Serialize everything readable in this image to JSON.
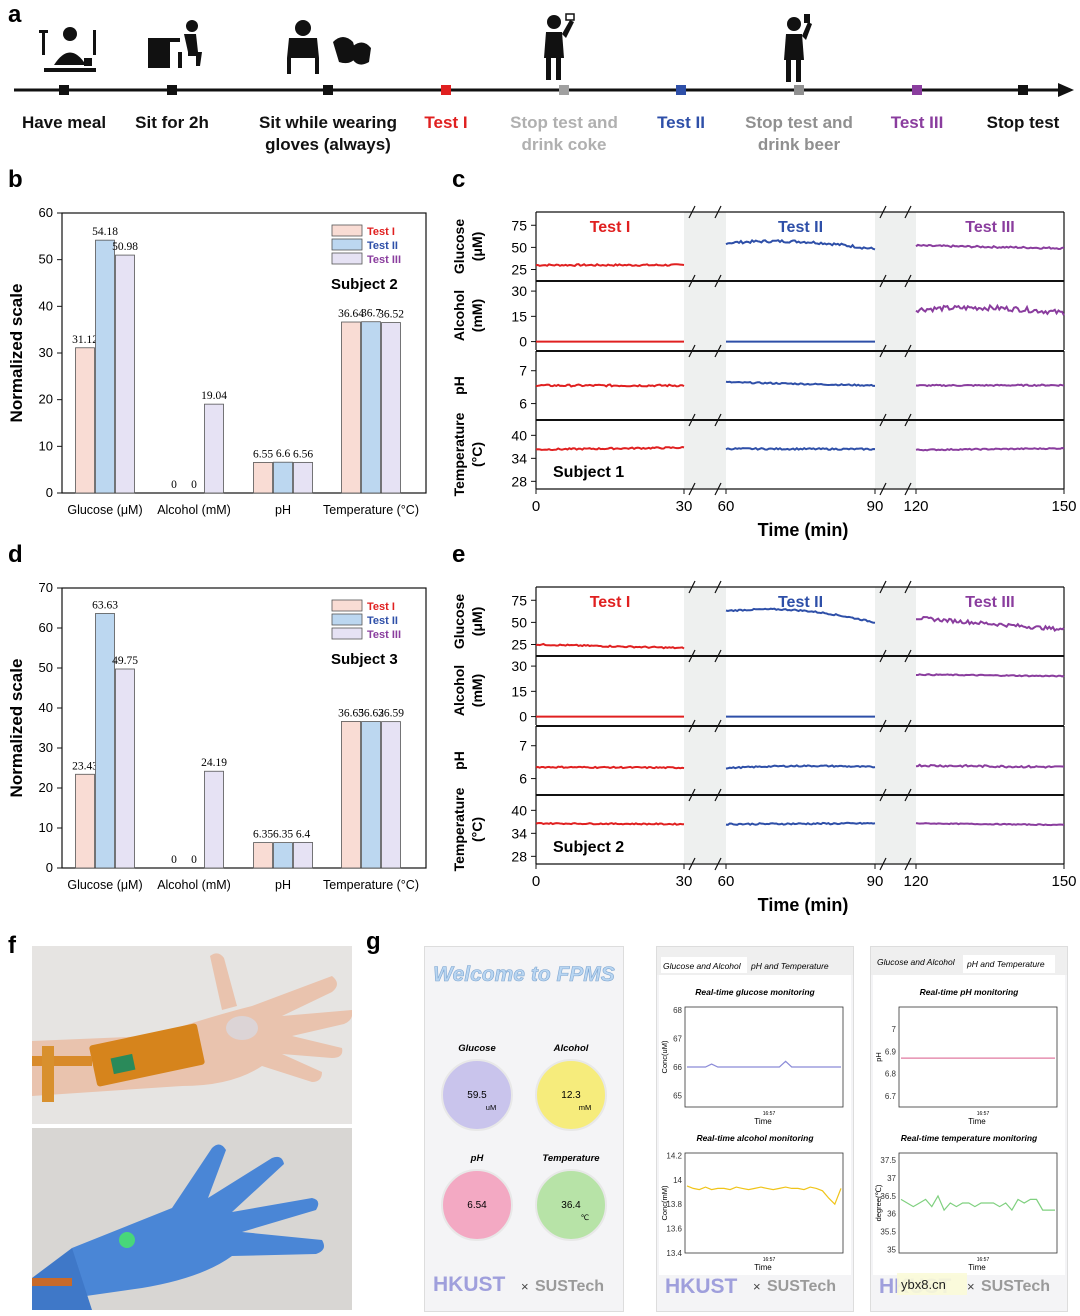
{
  "panels": {
    "a": "a",
    "b": "b",
    "c": "c",
    "d": "d",
    "e": "e",
    "f": "f",
    "g": "g"
  },
  "timeline": {
    "steps": [
      {
        "label": [
          "Have meal"
        ],
        "color": "#111111",
        "marker": "#111111"
      },
      {
        "label": [
          "Sit for 2h"
        ],
        "color": "#111111",
        "marker": "#111111"
      },
      {
        "label": [
          "Sit while wearing",
          "gloves (always)"
        ],
        "color": "#111111",
        "marker": "#111111"
      },
      {
        "label": [
          "Test I"
        ],
        "color": "#e02020",
        "marker": "#e02020"
      },
      {
        "label": [
          "Stop test and",
          "drink coke"
        ],
        "color": "#b0b0b0",
        "marker": "#a0a0a0"
      },
      {
        "label": [
          "Test II"
        ],
        "color": "#2e4fa8",
        "marker": "#2e4fa8"
      },
      {
        "label": [
          "Stop test and",
          "drink beer"
        ],
        "color": "#909090",
        "marker": "#909090"
      },
      {
        "label": [
          "Test III"
        ],
        "color": "#8a3d9e",
        "marker": "#8a3d9e"
      },
      {
        "label": [
          "Stop test"
        ],
        "color": "#111111",
        "marker": "#111111"
      }
    ]
  },
  "chart_data": [
    {
      "id": "b",
      "type": "bar",
      "subtitle": "Subject 2",
      "categories": [
        "Glucose (μM)",
        "Alcohol (mM)",
        "pH",
        "Temperature (°C)"
      ],
      "series": [
        {
          "name": "Test I",
          "values": [
            31.12,
            0,
            6.55,
            36.64
          ],
          "fill": "#f9dcd4",
          "text": "#e02020"
        },
        {
          "name": "Test II",
          "values": [
            54.18,
            0,
            6.6,
            36.7
          ],
          "fill": "#bcd7f0",
          "text": "#2e4fa8"
        },
        {
          "name": "Test III",
          "values": [
            50.98,
            19.04,
            6.56,
            36.52
          ],
          "fill": "#e6e2f4",
          "text": "#8a3d9e"
        }
      ],
      "labels": [
        [
          "31.12",
          "54.18",
          "50.98"
        ],
        [
          "0",
          "0",
          "19.04"
        ],
        [
          "6.55",
          "6.6",
          "6.56"
        ],
        [
          "36.64",
          "36.7",
          "36.52"
        ]
      ],
      "ylabel": "Normalized scale",
      "ylim": [
        0,
        60
      ],
      "yticks": [
        0,
        10,
        20,
        30,
        40,
        50,
        60
      ]
    },
    {
      "id": "d",
      "type": "bar",
      "subtitle": "Subject 3",
      "categories": [
        "Glucose (μM)",
        "Alcohol (mM)",
        "pH",
        "Temperature (°C)"
      ],
      "series": [
        {
          "name": "Test I",
          "values": [
            23.43,
            0,
            6.35,
            36.65
          ],
          "fill": "#f9dcd4",
          "text": "#e02020"
        },
        {
          "name": "Test II",
          "values": [
            63.63,
            0,
            6.35,
            36.62
          ],
          "fill": "#bcd7f0",
          "text": "#2e4fa8"
        },
        {
          "name": "Test III",
          "values": [
            49.75,
            24.19,
            6.4,
            36.59
          ],
          "fill": "#e6e2f4",
          "text": "#8a3d9e"
        }
      ],
      "labels": [
        [
          "23.43",
          "63.63",
          "49.75"
        ],
        [
          "0",
          "0",
          "24.19"
        ],
        [
          "6.35",
          "6.35",
          "6.4"
        ],
        [
          "36.65",
          "36.62",
          "36.59"
        ]
      ],
      "ylabel": "Normalized scale",
      "ylim": [
        0,
        70
      ],
      "yticks": [
        0,
        10,
        20,
        30,
        40,
        50,
        60,
        70
      ]
    },
    {
      "id": "c",
      "type": "line",
      "subject": "Subject 1",
      "xlabel": "Time (min)",
      "xticks": [
        "0",
        "30",
        "60",
        "90",
        "120",
        "150"
      ],
      "tests": [
        {
          "name": "Test I",
          "color": "#e02020",
          "t": [
            0,
            30
          ]
        },
        {
          "name": "Test II",
          "color": "#2e4fa8",
          "t": [
            60,
            90
          ]
        },
        {
          "name": "Test III",
          "color": "#8a3d9e",
          "t": [
            120,
            150
          ]
        }
      ],
      "rows": [
        {
          "name": [
            "Glucose",
            "(μM)"
          ],
          "ylim": [
            12,
            90
          ],
          "ticks": [
            "25",
            "50",
            "75"
          ],
          "tickv": [
            25,
            50,
            75
          ],
          "levels": [
            [
              30,
              30
            ],
            [
              55,
              48
            ],
            [
              52,
              49
            ]
          ],
          "bump": [
            0,
            5,
            0
          ],
          "noise": [
            1,
            1.5,
            1
          ]
        },
        {
          "name": [
            "Alcohol",
            "(mM)"
          ],
          "ylim": [
            -5,
            36
          ],
          "ticks": [
            "0",
            "15",
            "30"
          ],
          "tickv": [
            0,
            15,
            30
          ],
          "levels": [
            [
              0,
              0
            ],
            [
              0,
              0
            ],
            [
              19,
              17
            ]
          ],
          "bump": [
            0,
            0,
            2
          ],
          "noise": [
            0,
            0,
            1.5
          ]
        },
        {
          "name": [
            "pH"
          ],
          "ylim": [
            5.5,
            7.6
          ],
          "ticks": [
            "6",
            "7"
          ],
          "tickv": [
            6,
            7
          ],
          "levels": [
            [
              6.55,
              6.55
            ],
            [
              6.65,
              6.55
            ],
            [
              6.55,
              6.56
            ]
          ],
          "bump": [
            0,
            0,
            0
          ],
          "noise": [
            0.03,
            0.02,
            0.02
          ]
        },
        {
          "name": [
            "Temperature",
            "(°C)"
          ],
          "ylim": [
            26,
            44
          ],
          "ticks": [
            "28",
            "34",
            "40"
          ],
          "tickv": [
            28,
            34,
            40
          ],
          "levels": [
            [
              36.3,
              36.8
            ],
            [
              36.5,
              36.4
            ],
            [
              36.2,
              36.6
            ]
          ],
          "bump": [
            0,
            0,
            0
          ],
          "noise": [
            0.2,
            0.2,
            0.15
          ]
        }
      ]
    },
    {
      "id": "e",
      "type": "line",
      "subject": "Subject 2",
      "xlabel": "Time (min)",
      "xticks": [
        "0",
        "30",
        "60",
        "90",
        "120",
        "150"
      ],
      "tests": [
        {
          "name": "Test I",
          "color": "#e02020",
          "t": [
            0,
            30
          ]
        },
        {
          "name": "Test II",
          "color": "#2e4fa8",
          "t": [
            60,
            90
          ]
        },
        {
          "name": "Test III",
          "color": "#8a3d9e",
          "t": [
            120,
            150
          ]
        }
      ],
      "rows": [
        {
          "name": [
            "Glucose",
            "(μM)"
          ],
          "ylim": [
            12,
            90
          ],
          "ticks": [
            "25",
            "50",
            "75"
          ],
          "tickv": [
            25,
            50,
            75
          ],
          "levels": [
            [
              25,
              21
            ],
            [
              63,
              50
            ],
            [
              55,
              42
            ]
          ],
          "bump": [
            0,
            7,
            0
          ],
          "noise": [
            0.8,
            0.8,
            2
          ]
        },
        {
          "name": [
            "Alcohol",
            "(mM)"
          ],
          "ylim": [
            -5,
            36
          ],
          "ticks": [
            "0",
            "15",
            "30"
          ],
          "tickv": [
            0,
            15,
            30
          ],
          "levels": [
            [
              0,
              0
            ],
            [
              0,
              0
            ],
            [
              25,
              24
            ]
          ],
          "bump": [
            0,
            0,
            0
          ],
          "noise": [
            0,
            0,
            0.3
          ]
        },
        {
          "name": [
            "pH"
          ],
          "ylim": [
            5.5,
            7.6
          ],
          "ticks": [
            "6",
            "7"
          ],
          "tickv": [
            6,
            7
          ],
          "levels": [
            [
              6.35,
              6.33
            ],
            [
              6.32,
              6.35
            ],
            [
              6.4,
              6.35
            ]
          ],
          "bump": [
            0,
            0.05,
            0
          ],
          "noise": [
            0.02,
            0.02,
            0.03
          ]
        },
        {
          "name": [
            "Temperature",
            "(°C)"
          ],
          "ylim": [
            26,
            44
          ],
          "ticks": [
            "28",
            "34",
            "40"
          ],
          "tickv": [
            28,
            34,
            40
          ],
          "levels": [
            [
              36.6,
              36.4
            ],
            [
              36.4,
              36.6
            ],
            [
              36.6,
              36.2
            ]
          ],
          "bump": [
            0,
            0,
            0
          ],
          "noise": [
            0.15,
            0.2,
            0.1
          ]
        }
      ]
    },
    {
      "id": "g-glucose",
      "type": "line",
      "title": "Real-time glucose monitoring",
      "ylabel": "Conc(uM)",
      "xlabel": "Time",
      "xtick": "16:57",
      "yticks": [
        "65",
        "66",
        "67",
        "68"
      ],
      "ylim": [
        64.6,
        68.1
      ],
      "color": "#8b8bd8",
      "values": [
        66,
        66,
        66,
        66,
        66.1,
        66,
        66,
        66,
        66,
        66,
        66,
        66,
        66,
        66,
        66,
        66,
        66.2,
        66,
        66,
        66,
        66,
        66,
        66,
        66,
        66,
        66
      ]
    },
    {
      "id": "g-alcohol",
      "type": "line",
      "title": "Real-time alcohol monitoring",
      "ylabel": "Conc(mM)",
      "xlabel": "Time",
      "xtick": "16:57",
      "yticks": [
        "13.4",
        "13.6",
        "13.8",
        "14",
        "14.2"
      ],
      "ylim": [
        13.4,
        14.22
      ],
      "color": "#f0c419",
      "values": [
        13.95,
        13.93,
        13.92,
        13.94,
        13.92,
        13.93,
        13.93,
        13.92,
        13.94,
        13.93,
        13.92,
        13.93,
        13.94,
        13.93,
        13.92,
        13.93,
        13.94,
        13.93,
        13.93,
        13.92,
        13.94,
        13.93,
        13.91,
        13.85,
        13.8,
        13.93
      ]
    },
    {
      "id": "g-ph",
      "type": "line",
      "title": "Real-time pH monitoring",
      "ylabel": "pH",
      "xlabel": "Time",
      "xtick": "16:57",
      "yticks": [
        "6.7",
        "6.8",
        "6.9",
        "7"
      ],
      "ylim": [
        6.65,
        7.1
      ],
      "color": "#e07aa0",
      "values": [
        6.87,
        6.87,
        6.87,
        6.87,
        6.87,
        6.87,
        6.87,
        6.87,
        6.87,
        6.87,
        6.87,
        6.87,
        6.87,
        6.87,
        6.87,
        6.87,
        6.87,
        6.87,
        6.87,
        6.87,
        6.87,
        6.87,
        6.87,
        6.87,
        6.87,
        6.87
      ]
    },
    {
      "id": "g-temp",
      "type": "line",
      "title": "Real-time temperature monitoring",
      "ylabel": "degree(℃)",
      "xlabel": "Time",
      "xtick": "16:57",
      "yticks": [
        "35",
        "35.5",
        "36",
        "36.5",
        "37",
        "37.5"
      ],
      "ylim": [
        34.9,
        37.7
      ],
      "color": "#7fd07f",
      "values": [
        36.4,
        36.3,
        36.2,
        36.3,
        36.4,
        36.2,
        36.5,
        36.1,
        36.3,
        36.2,
        36.3,
        36.3,
        36.2,
        36.3,
        36.3,
        36.3,
        36.2,
        36.3,
        36.1,
        36.4,
        36.3,
        36.4,
        36.4,
        36.1,
        36.1,
        36.1
      ]
    }
  ],
  "app": {
    "welcome": "Welcome to FPMS",
    "gauges": [
      {
        "name": "Glucose",
        "value": "59.5",
        "unit": "uM",
        "fill": "#c9c4ec"
      },
      {
        "name": "Alcohol",
        "value": "12.3",
        "unit": "mM",
        "fill": "#f6ec7c"
      },
      {
        "name": "pH",
        "value": "6.54",
        "unit": "",
        "fill": "#f3a9c3"
      },
      {
        "name": "Temperature",
        "value": "36.4",
        "unit": "℃",
        "fill": "#b7e3a7"
      }
    ],
    "tabs1": [
      "Glucose and Alcohol",
      "pH and Temperature"
    ],
    "tabs2": [
      "Glucose and Alcohol",
      "pH and Temperature"
    ],
    "logo_left": "HKUST",
    "logo_times": "×",
    "logo_right": "SUSTech",
    "watermark": "ybx8.cn"
  }
}
